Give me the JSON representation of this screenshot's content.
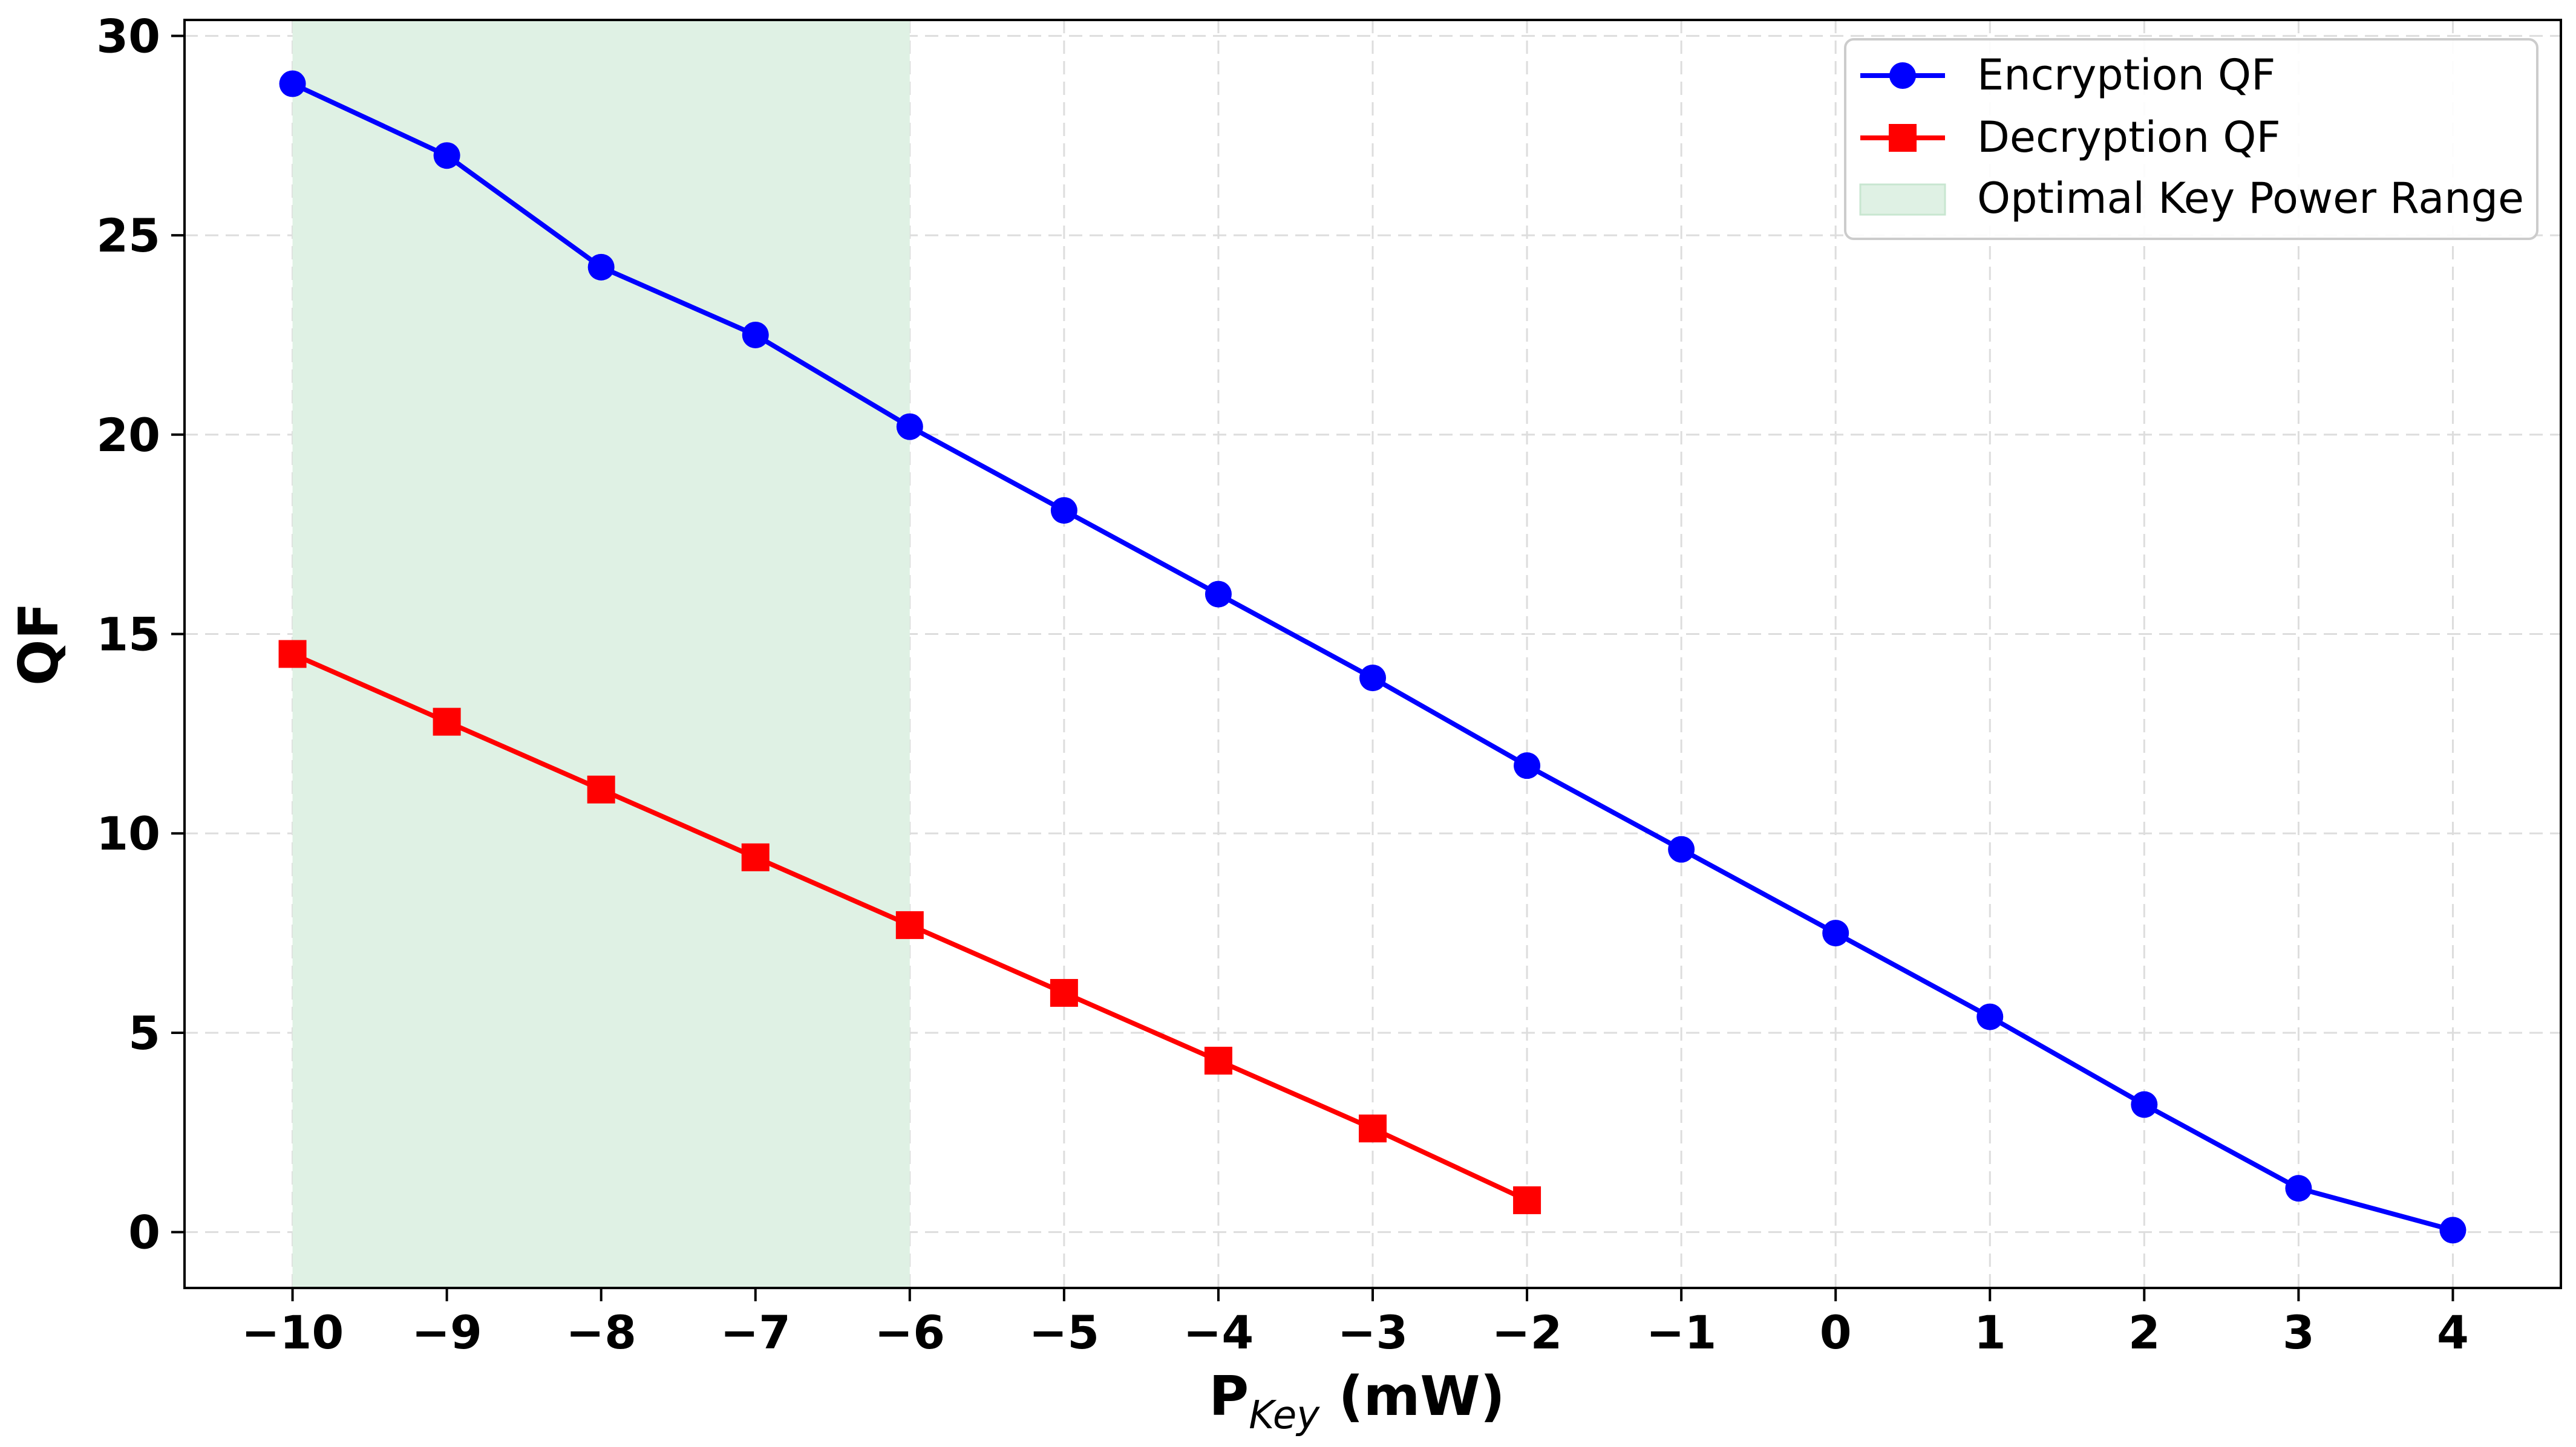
{
  "chart_data": {
    "type": "line",
    "title": "",
    "xlabel": {
      "main": "P",
      "subscript": "Key",
      "suffix": " (mW)"
    },
    "ylabel": "QF",
    "xlim": [
      -10.7,
      4.7
    ],
    "ylim": [
      -1.4,
      30.4
    ],
    "xticks": [
      -10,
      -9,
      -8,
      -7,
      -6,
      -5,
      -4,
      -3,
      -2,
      -1,
      0,
      1,
      2,
      3,
      4
    ],
    "xtick_labels": [
      "−10",
      "−9",
      "−8",
      "−7",
      "−6",
      "−5",
      "−4",
      "−3",
      "−2",
      "−1",
      "0",
      "1",
      "2",
      "3",
      "4"
    ],
    "yticks": [
      0,
      5,
      10,
      15,
      20,
      25,
      30
    ],
    "ytick_labels": [
      "0",
      "5",
      "10",
      "15",
      "20",
      "25",
      "30"
    ],
    "grid": true,
    "legend_position": "top-right",
    "shaded_region": {
      "label": "Optimal Key Power Range",
      "x_start": -10,
      "x_end": -6,
      "color": "#dff1e4"
    },
    "series": [
      {
        "name": "Encryption QF",
        "color": "#0000ff",
        "marker": "circle",
        "x": [
          -10,
          -9,
          -8,
          -7,
          -6,
          -5,
          -4,
          -3,
          -2,
          -1,
          0,
          1,
          2,
          3,
          4
        ],
        "values": [
          28.8,
          27.0,
          24.2,
          22.5,
          20.2,
          18.1,
          16.0,
          13.9,
          11.7,
          9.6,
          7.5,
          5.4,
          3.2,
          1.1,
          0.05
        ]
      },
      {
        "name": "Decryption QF",
        "color": "#ff0000",
        "marker": "square",
        "x": [
          -10,
          -9,
          -8,
          -7,
          -6,
          -5,
          -4,
          -3,
          -2
        ],
        "values": [
          14.5,
          12.8,
          11.1,
          9.4,
          7.7,
          6.0,
          4.3,
          2.6,
          0.8
        ]
      }
    ]
  }
}
